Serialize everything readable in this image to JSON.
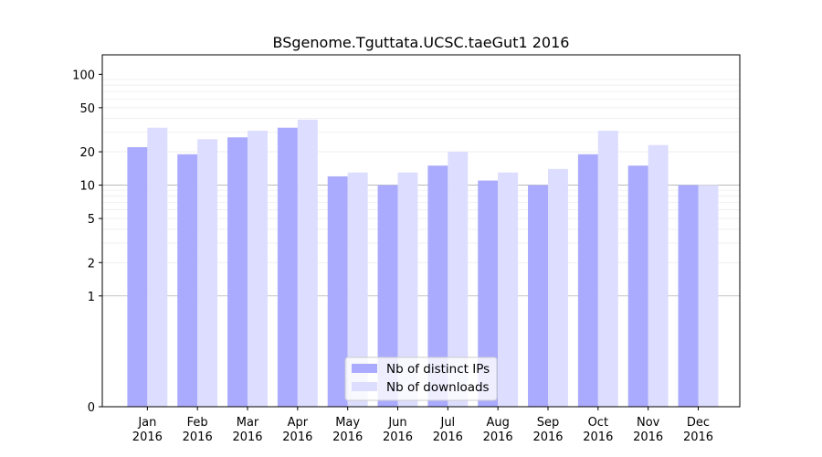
{
  "chart_data": {
    "type": "bar",
    "title": "BSgenome.Tguttata.UCSC.taeGut1 2016",
    "xlabel": "",
    "ylabel": "",
    "scale": "symlog",
    "categories": [
      [
        "Jan",
        "2016"
      ],
      [
        "Feb",
        "2016"
      ],
      [
        "Mar",
        "2016"
      ],
      [
        "Apr",
        "2016"
      ],
      [
        "May",
        "2016"
      ],
      [
        "Jun",
        "2016"
      ],
      [
        "Jul",
        "2016"
      ],
      [
        "Aug",
        "2016"
      ],
      [
        "Sep",
        "2016"
      ],
      [
        "Oct",
        "2016"
      ],
      [
        "Nov",
        "2016"
      ],
      [
        "Dec",
        "2016"
      ]
    ],
    "series": [
      {
        "name": "Nb of distinct IPs",
        "color": "#aaaaff",
        "values": [
          22,
          19,
          27,
          33,
          12,
          10,
          15,
          11,
          10,
          19,
          15,
          10
        ]
      },
      {
        "name": "Nb of downloads",
        "color": "#ddddff",
        "values": [
          33,
          26,
          31,
          39,
          13,
          13,
          20,
          13,
          14,
          31,
          23,
          10
        ]
      }
    ],
    "yticks": [
      0,
      1,
      2,
      5,
      10,
      20,
      50,
      100
    ],
    "ytick_labels": [
      "0",
      "1",
      "2",
      "5",
      "10",
      "20",
      "50",
      "100"
    ],
    "grid": true,
    "legend_position": "bottom-center"
  }
}
